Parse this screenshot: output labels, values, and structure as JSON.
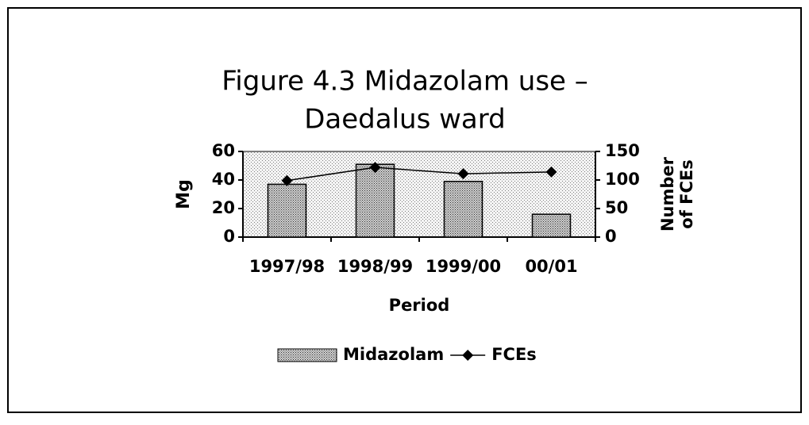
{
  "chart_data": {
    "type": "bar_line",
    "title": [
      "Figure 4.3 Midazolam use –",
      "Daedalus ward"
    ],
    "xlabel": "Period",
    "ylabel": "Mg",
    "y2label": [
      "Number",
      "of FCEs"
    ],
    "categories": [
      "1997/98",
      "1998/99",
      "1999/00",
      "00/01"
    ],
    "series": [
      {
        "name": "Midazolam",
        "type": "bar",
        "color": "#a0a0a0",
        "values": [
          37,
          51,
          39,
          16
        ]
      },
      {
        "name": "FCEs",
        "type": "line",
        "axis": "y2",
        "color": "#000000",
        "values": [
          99,
          122,
          111,
          114
        ]
      }
    ],
    "ylim": [
      0,
      60
    ],
    "yticks": [
      0,
      20,
      40,
      60
    ],
    "y2lim": [
      0,
      150
    ],
    "y2ticks": [
      0,
      50,
      100,
      150
    ],
    "legend": "bottom"
  }
}
